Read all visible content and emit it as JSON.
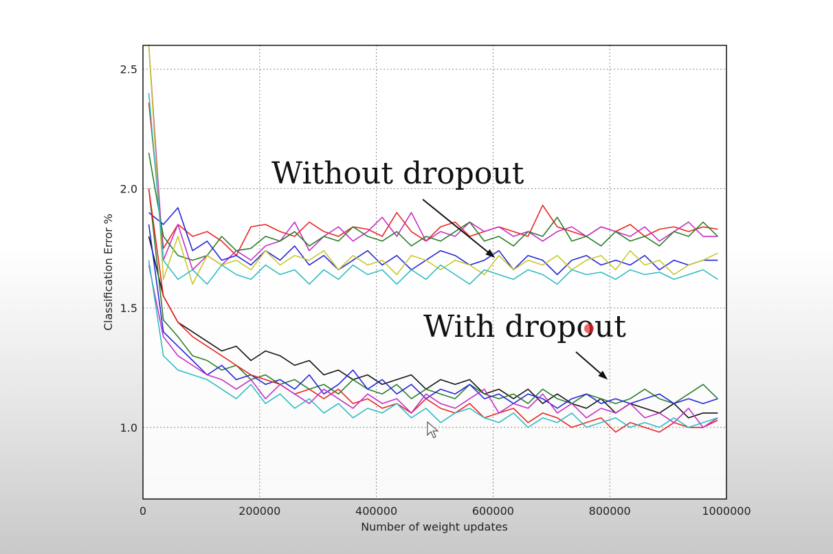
{
  "chart_data": {
    "type": "line",
    "title": "",
    "xlabel": "Number of weight updates",
    "ylabel": "Classification Error %",
    "xlim": [
      0,
      1000000
    ],
    "ylim": [
      0.7,
      2.6
    ],
    "xticks": [
      0,
      200000,
      400000,
      600000,
      800000,
      1000000
    ],
    "xtick_labels": [
      "0",
      "200000",
      "400000",
      "600000",
      "800000",
      "1000000"
    ],
    "yticks": [
      1.0,
      1.5,
      2.0,
      2.5
    ],
    "ytick_labels": [
      "1.0",
      "1.5",
      "2.0",
      "2.5"
    ],
    "grid": true,
    "annotations": [
      {
        "text": "Without dropout",
        "arrow_to": [
          600000,
          1.71
        ]
      },
      {
        "text": "With dropout",
        "arrow_to": [
          800000,
          1.2
        ]
      }
    ],
    "x": [
      10000,
      35000,
      60000,
      85000,
      110000,
      135000,
      160000,
      185000,
      210000,
      235000,
      260000,
      285000,
      310000,
      335000,
      360000,
      385000,
      410000,
      435000,
      460000,
      485000,
      510000,
      535000,
      560000,
      585000,
      610000,
      635000,
      660000,
      685000,
      710000,
      735000,
      760000,
      785000,
      810000,
      835000,
      860000,
      885000,
      910000,
      935000,
      960000,
      985000
    ],
    "series": [
      {
        "group": "without",
        "color": "#e8251f",
        "values": [
          2.36,
          1.75,
          1.85,
          1.8,
          1.82,
          1.78,
          1.72,
          1.84,
          1.85,
          1.82,
          1.8,
          1.86,
          1.82,
          1.8,
          1.84,
          1.83,
          1.8,
          1.9,
          1.82,
          1.78,
          1.84,
          1.86,
          1.8,
          1.82,
          1.84,
          1.82,
          1.8,
          1.93,
          1.84,
          1.82,
          1.8,
          1.84,
          1.82,
          1.85,
          1.8,
          1.83,
          1.84,
          1.82,
          1.84,
          1.83
        ]
      },
      {
        "group": "without",
        "color": "#c42fc4",
        "values": [
          2.6,
          1.7,
          1.85,
          1.66,
          1.72,
          1.68,
          1.74,
          1.7,
          1.76,
          1.78,
          1.86,
          1.74,
          1.8,
          1.84,
          1.78,
          1.82,
          1.88,
          1.8,
          1.9,
          1.78,
          1.82,
          1.8,
          1.86,
          1.82,
          1.84,
          1.8,
          1.82,
          1.78,
          1.82,
          1.84,
          1.8,
          1.84,
          1.82,
          1.8,
          1.84,
          1.78,
          1.82,
          1.86,
          1.8,
          1.8
        ]
      },
      {
        "group": "without",
        "color": "#2a7d2a",
        "values": [
          2.15,
          1.8,
          1.72,
          1.7,
          1.72,
          1.8,
          1.74,
          1.75,
          1.8,
          1.78,
          1.82,
          1.76,
          1.8,
          1.78,
          1.84,
          1.8,
          1.78,
          1.82,
          1.76,
          1.8,
          1.78,
          1.82,
          1.86,
          1.78,
          1.8,
          1.76,
          1.82,
          1.8,
          1.88,
          1.78,
          1.8,
          1.76,
          1.82,
          1.78,
          1.8,
          1.76,
          1.82,
          1.8,
          1.86,
          1.8
        ]
      },
      {
        "group": "without",
        "color": "#2424d8",
        "values": [
          1.9,
          1.85,
          1.92,
          1.74,
          1.78,
          1.7,
          1.72,
          1.68,
          1.74,
          1.7,
          1.76,
          1.68,
          1.72,
          1.66,
          1.7,
          1.74,
          1.68,
          1.72,
          1.66,
          1.7,
          1.74,
          1.72,
          1.68,
          1.7,
          1.74,
          1.66,
          1.72,
          1.7,
          1.64,
          1.7,
          1.72,
          1.68,
          1.7,
          1.68,
          1.72,
          1.66,
          1.7,
          1.68,
          1.7,
          1.7
        ]
      },
      {
        "group": "without",
        "color": "#c8c82a",
        "values": [
          2.6,
          1.62,
          1.8,
          1.6,
          1.72,
          1.68,
          1.7,
          1.66,
          1.74,
          1.68,
          1.72,
          1.7,
          1.74,
          1.66,
          1.72,
          1.68,
          1.7,
          1.64,
          1.72,
          1.7,
          1.66,
          1.7,
          1.68,
          1.64,
          1.72,
          1.66,
          1.7,
          1.68,
          1.72,
          1.66,
          1.7,
          1.72,
          1.66,
          1.74,
          1.68,
          1.7,
          1.64,
          1.68,
          1.7,
          1.73
        ]
      },
      {
        "group": "without",
        "color": "#2fbcc4",
        "values": [
          2.4,
          1.7,
          1.62,
          1.66,
          1.6,
          1.68,
          1.64,
          1.62,
          1.68,
          1.64,
          1.66,
          1.6,
          1.66,
          1.62,
          1.68,
          1.64,
          1.66,
          1.6,
          1.66,
          1.62,
          1.68,
          1.64,
          1.6,
          1.66,
          1.64,
          1.62,
          1.66,
          1.64,
          1.6,
          1.66,
          1.64,
          1.65,
          1.62,
          1.66,
          1.64,
          1.65,
          1.62,
          1.64,
          1.66,
          1.62
        ]
      },
      {
        "group": "with",
        "color": "#111111",
        "values": [
          1.8,
          1.55,
          1.44,
          1.4,
          1.36,
          1.32,
          1.34,
          1.28,
          1.32,
          1.3,
          1.26,
          1.28,
          1.22,
          1.24,
          1.2,
          1.22,
          1.18,
          1.2,
          1.22,
          1.16,
          1.2,
          1.18,
          1.2,
          1.14,
          1.16,
          1.12,
          1.16,
          1.1,
          1.14,
          1.1,
          1.08,
          1.12,
          1.06,
          1.1,
          1.08,
          1.06,
          1.1,
          1.04,
          1.06,
          1.06
        ]
      },
      {
        "group": "with",
        "color": "#2a7d2a",
        "values": [
          2.0,
          1.45,
          1.38,
          1.3,
          1.28,
          1.24,
          1.26,
          1.2,
          1.22,
          1.18,
          1.2,
          1.16,
          1.18,
          1.14,
          1.2,
          1.16,
          1.14,
          1.18,
          1.12,
          1.16,
          1.14,
          1.12,
          1.18,
          1.14,
          1.12,
          1.14,
          1.1,
          1.16,
          1.12,
          1.1,
          1.14,
          1.12,
          1.1,
          1.12,
          1.16,
          1.12,
          1.1,
          1.14,
          1.18,
          1.12
        ]
      },
      {
        "group": "with",
        "color": "#2424d8",
        "values": [
          1.85,
          1.4,
          1.34,
          1.28,
          1.22,
          1.26,
          1.2,
          1.22,
          1.18,
          1.2,
          1.16,
          1.22,
          1.14,
          1.18,
          1.24,
          1.16,
          1.2,
          1.14,
          1.18,
          1.12,
          1.16,
          1.14,
          1.18,
          1.12,
          1.14,
          1.1,
          1.14,
          1.12,
          1.08,
          1.12,
          1.14,
          1.1,
          1.12,
          1.1,
          1.12,
          1.14,
          1.1,
          1.12,
          1.1,
          1.12
        ]
      },
      {
        "group": "with",
        "color": "#e8251f",
        "values": [
          2.0,
          1.55,
          1.44,
          1.38,
          1.34,
          1.3,
          1.26,
          1.22,
          1.2,
          1.18,
          1.14,
          1.16,
          1.12,
          1.16,
          1.1,
          1.12,
          1.08,
          1.1,
          1.06,
          1.12,
          1.08,
          1.06,
          1.1,
          1.04,
          1.06,
          1.08,
          1.02,
          1.06,
          1.04,
          1.0,
          1.02,
          1.04,
          0.98,
          1.02,
          1.0,
          0.98,
          1.02,
          1.0,
          1.0,
          1.03
        ]
      },
      {
        "group": "with",
        "color": "#c42fc4",
        "values": [
          1.68,
          1.38,
          1.3,
          1.26,
          1.22,
          1.2,
          1.16,
          1.2,
          1.12,
          1.18,
          1.14,
          1.1,
          1.16,
          1.12,
          1.08,
          1.14,
          1.1,
          1.12,
          1.06,
          1.14,
          1.1,
          1.08,
          1.12,
          1.16,
          1.06,
          1.1,
          1.08,
          1.14,
          1.06,
          1.1,
          1.04,
          1.08,
          1.06,
          1.1,
          1.04,
          1.06,
          1.02,
          1.08,
          1.0,
          1.04
        ]
      },
      {
        "group": "with",
        "color": "#2fbcc4",
        "values": [
          1.7,
          1.3,
          1.24,
          1.22,
          1.2,
          1.16,
          1.12,
          1.18,
          1.1,
          1.14,
          1.08,
          1.12,
          1.06,
          1.1,
          1.04,
          1.08,
          1.06,
          1.1,
          1.04,
          1.08,
          1.02,
          1.06,
          1.08,
          1.04,
          1.02,
          1.06,
          1.0,
          1.04,
          1.02,
          1.06,
          1.0,
          1.02,
          1.04,
          1.0,
          1.02,
          1.0,
          1.04,
          1.0,
          1.02,
          1.04
        ]
      }
    ]
  }
}
